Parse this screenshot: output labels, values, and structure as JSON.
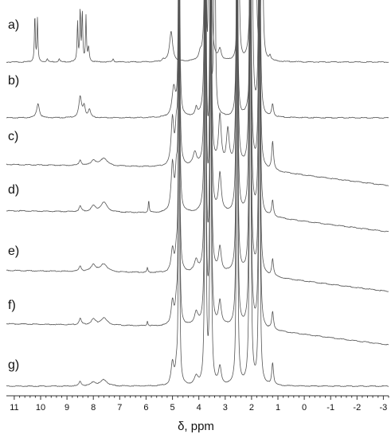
{
  "chart_data": {
    "type": "line",
    "title": "",
    "xlabel": "δ, ppm",
    "ylabel": "",
    "x_unit": "ppm",
    "x_reversed": true,
    "xlim": [
      11.3,
      -3.2
    ],
    "x_ticks": [
      "11",
      "10",
      "9",
      "8",
      "7",
      "6",
      "5",
      "4",
      "3",
      "2",
      "1",
      "0",
      "-1",
      "-2",
      "-3"
    ],
    "grid": false,
    "legend": "none",
    "series": [
      {
        "label": "a)",
        "baseline_slope": 0.0,
        "peaks": [
          {
            "ppm": 10.22,
            "height": 60,
            "width": 0.02
          },
          {
            "ppm": 10.12,
            "height": 54,
            "width": 0.02
          },
          {
            "ppm": 9.75,
            "height": 4,
            "width": 0.03
          },
          {
            "ppm": 9.3,
            "height": 4,
            "width": 0.03
          },
          {
            "ppm": 8.6,
            "height": 50,
            "width": 0.02
          },
          {
            "ppm": 8.5,
            "height": 66,
            "width": 0.02
          },
          {
            "ppm": 8.42,
            "height": 62,
            "width": 0.02
          },
          {
            "ppm": 8.28,
            "height": 56,
            "width": 0.02
          },
          {
            "ppm": 8.18,
            "height": 18,
            "width": 0.03
          },
          {
            "ppm": 7.25,
            "height": 4,
            "width": 0.03
          },
          {
            "ppm": 5.35,
            "height": 3,
            "width": 0.05
          },
          {
            "ppm": 5.05,
            "height": 38,
            "width": 0.07
          },
          {
            "ppm": 3.95,
            "height": 8,
            "width": 0.05
          },
          {
            "ppm": 3.75,
            "height": 520,
            "width": 0.02
          },
          {
            "ppm": 3.65,
            "height": 520,
            "width": 0.025
          },
          {
            "ppm": 3.55,
            "height": 520,
            "width": 0.02
          },
          {
            "ppm": 3.2,
            "height": 14,
            "width": 0.06
          },
          {
            "ppm": 2.5,
            "height": 520,
            "width": 0.02
          },
          {
            "ppm": 2.0,
            "height": 520,
            "width": 0.03
          },
          {
            "ppm": 1.85,
            "height": 520,
            "width": 0.02
          },
          {
            "ppm": 1.6,
            "height": 520,
            "width": 0.02
          },
          {
            "ppm": 1.3,
            "height": 6,
            "width": 0.04
          }
        ]
      },
      {
        "label": "b)",
        "baseline_slope": 0.0,
        "peaks": [
          {
            "ppm": 10.1,
            "height": 18,
            "width": 0.06
          },
          {
            "ppm": 8.5,
            "height": 26,
            "width": 0.06
          },
          {
            "ppm": 8.35,
            "height": 14,
            "width": 0.05
          },
          {
            "ppm": 8.15,
            "height": 10,
            "width": 0.05
          },
          {
            "ppm": 4.95,
            "height": 36,
            "width": 0.08
          },
          {
            "ppm": 4.75,
            "height": 520,
            "width": 0.02
          },
          {
            "ppm": 4.1,
            "height": 10,
            "width": 0.05
          },
          {
            "ppm": 3.75,
            "height": 520,
            "width": 0.025
          },
          {
            "ppm": 3.6,
            "height": 520,
            "width": 0.025
          },
          {
            "ppm": 3.4,
            "height": 520,
            "width": 0.02
          },
          {
            "ppm": 2.55,
            "height": 520,
            "width": 0.02
          },
          {
            "ppm": 2.0,
            "height": 520,
            "width": 0.03
          },
          {
            "ppm": 1.7,
            "height": 520,
            "width": 0.025
          },
          {
            "ppm": 1.2,
            "height": 16,
            "width": 0.04
          }
        ]
      },
      {
        "label": "c)",
        "baseline_slope": 0.9,
        "peaks": [
          {
            "ppm": 8.5,
            "height": 7,
            "width": 0.05
          },
          {
            "ppm": 8.0,
            "height": 7,
            "width": 0.1
          },
          {
            "ppm": 7.6,
            "height": 10,
            "width": 0.15
          },
          {
            "ppm": 5.0,
            "height": 58,
            "width": 0.06
          },
          {
            "ppm": 4.85,
            "height": 42,
            "width": 0.05
          },
          {
            "ppm": 4.75,
            "height": 520,
            "width": 0.02
          },
          {
            "ppm": 4.15,
            "height": 16,
            "width": 0.08
          },
          {
            "ppm": 3.75,
            "height": 520,
            "width": 0.025
          },
          {
            "ppm": 3.55,
            "height": 520,
            "width": 0.025
          },
          {
            "ppm": 3.2,
            "height": 62,
            "width": 0.06
          },
          {
            "ppm": 2.9,
            "height": 44,
            "width": 0.06
          },
          {
            "ppm": 2.55,
            "height": 520,
            "width": 0.025
          },
          {
            "ppm": 2.05,
            "height": 520,
            "width": 0.03
          },
          {
            "ppm": 1.7,
            "height": 520,
            "width": 0.025
          },
          {
            "ppm": 1.2,
            "height": 36,
            "width": 0.04
          }
        ]
      },
      {
        "label": "d)",
        "baseline_slope": 0.9,
        "peaks": [
          {
            "ppm": 8.5,
            "height": 7,
            "width": 0.05
          },
          {
            "ppm": 8.0,
            "height": 7,
            "width": 0.1
          },
          {
            "ppm": 7.6,
            "height": 12,
            "width": 0.15
          },
          {
            "ppm": 5.9,
            "height": 16,
            "width": 0.02
          },
          {
            "ppm": 5.0,
            "height": 60,
            "width": 0.06
          },
          {
            "ppm": 4.85,
            "height": 44,
            "width": 0.05
          },
          {
            "ppm": 4.75,
            "height": 520,
            "width": 0.02
          },
          {
            "ppm": 3.75,
            "height": 520,
            "width": 0.025
          },
          {
            "ppm": 3.55,
            "height": 520,
            "width": 0.025
          },
          {
            "ppm": 3.2,
            "height": 48,
            "width": 0.06
          },
          {
            "ppm": 2.55,
            "height": 520,
            "width": 0.025
          },
          {
            "ppm": 2.05,
            "height": 520,
            "width": 0.03
          },
          {
            "ppm": 1.7,
            "height": 520,
            "width": 0.025
          },
          {
            "ppm": 1.2,
            "height": 20,
            "width": 0.04
          }
        ]
      },
      {
        "label": "e)",
        "baseline_slope": 0.9,
        "peaks": [
          {
            "ppm": 8.5,
            "height": 7,
            "width": 0.05
          },
          {
            "ppm": 8.0,
            "height": 9,
            "width": 0.1
          },
          {
            "ppm": 7.6,
            "height": 10,
            "width": 0.15
          },
          {
            "ppm": 5.95,
            "height": 6,
            "width": 0.02
          },
          {
            "ppm": 5.0,
            "height": 28,
            "width": 0.06
          },
          {
            "ppm": 4.85,
            "height": 22,
            "width": 0.05
          },
          {
            "ppm": 4.75,
            "height": 520,
            "width": 0.02
          },
          {
            "ppm": 4.1,
            "height": 14,
            "width": 0.08
          },
          {
            "ppm": 3.75,
            "height": 520,
            "width": 0.025
          },
          {
            "ppm": 3.55,
            "height": 520,
            "width": 0.025
          },
          {
            "ppm": 3.2,
            "height": 30,
            "width": 0.06
          },
          {
            "ppm": 2.55,
            "height": 520,
            "width": 0.025
          },
          {
            "ppm": 2.05,
            "height": 520,
            "width": 0.03
          },
          {
            "ppm": 1.7,
            "height": 520,
            "width": 0.025
          },
          {
            "ppm": 1.2,
            "height": 22,
            "width": 0.04
          }
        ]
      },
      {
        "label": "f)",
        "baseline_slope": 0.9,
        "peaks": [
          {
            "ppm": 8.5,
            "height": 8,
            "width": 0.05
          },
          {
            "ppm": 8.0,
            "height": 7,
            "width": 0.1
          },
          {
            "ppm": 7.6,
            "height": 9,
            "width": 0.15
          },
          {
            "ppm": 5.95,
            "height": 6,
            "width": 0.02
          },
          {
            "ppm": 5.0,
            "height": 30,
            "width": 0.06
          },
          {
            "ppm": 4.85,
            "height": 24,
            "width": 0.05
          },
          {
            "ppm": 4.75,
            "height": 520,
            "width": 0.02
          },
          {
            "ppm": 4.1,
            "height": 16,
            "width": 0.08
          },
          {
            "ppm": 3.75,
            "height": 520,
            "width": 0.025
          },
          {
            "ppm": 3.55,
            "height": 520,
            "width": 0.025
          },
          {
            "ppm": 3.2,
            "height": 30,
            "width": 0.06
          },
          {
            "ppm": 2.55,
            "height": 520,
            "width": 0.025
          },
          {
            "ppm": 2.05,
            "height": 520,
            "width": 0.03
          },
          {
            "ppm": 1.7,
            "height": 520,
            "width": 0.025
          },
          {
            "ppm": 1.2,
            "height": 22,
            "width": 0.04
          }
        ]
      },
      {
        "label": "g)",
        "baseline_slope": 0.0,
        "peaks": [
          {
            "ppm": 8.5,
            "height": 6,
            "width": 0.05
          },
          {
            "ppm": 8.0,
            "height": 5,
            "width": 0.1
          },
          {
            "ppm": 7.6,
            "height": 8,
            "width": 0.15
          },
          {
            "ppm": 5.0,
            "height": 28,
            "width": 0.06
          },
          {
            "ppm": 4.85,
            "height": 18,
            "width": 0.05
          },
          {
            "ppm": 4.75,
            "height": 520,
            "width": 0.02
          },
          {
            "ppm": 4.1,
            "height": 10,
            "width": 0.08
          },
          {
            "ppm": 3.75,
            "height": 520,
            "width": 0.025
          },
          {
            "ppm": 3.55,
            "height": 520,
            "width": 0.025
          },
          {
            "ppm": 3.2,
            "height": 22,
            "width": 0.06
          },
          {
            "ppm": 2.55,
            "height": 520,
            "width": 0.025
          },
          {
            "ppm": 2.05,
            "height": 520,
            "width": 0.03
          },
          {
            "ppm": 1.7,
            "height": 520,
            "width": 0.025
          },
          {
            "ppm": 1.2,
            "height": 28,
            "width": 0.04
          }
        ]
      }
    ]
  }
}
